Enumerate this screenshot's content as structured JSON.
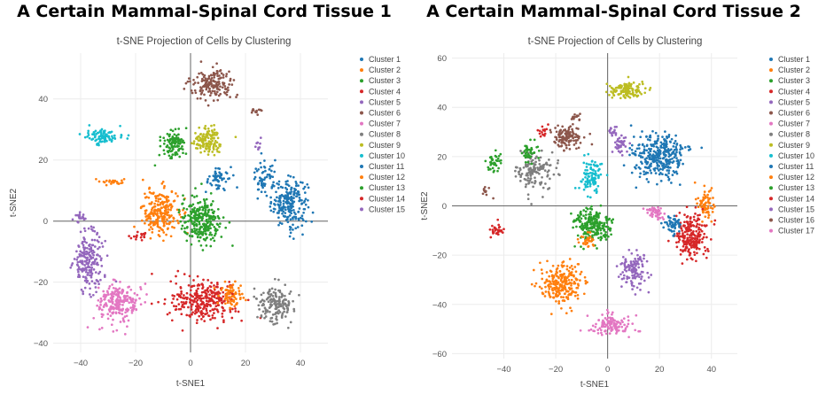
{
  "colors": {
    "palette": [
      "#1f77b4",
      "#ff7f0e",
      "#2ca02c",
      "#d62728",
      "#9467bd",
      "#8c564b",
      "#e377c2",
      "#7f7f7f",
      "#bcbd22",
      "#17becf",
      "#1f77b4",
      "#ff7f0e",
      "#2ca02c",
      "#d62728",
      "#9467bd",
      "#8c564b",
      "#e377c2"
    ]
  },
  "chart_data": [
    {
      "type": "scatter",
      "title": "A Certain Mammal-Spinal Cord Tissue 1",
      "subtitle": "t-SNE Projection of Cells by Clustering",
      "xlabel": "t-SNE1",
      "ylabel": "t-SNE2",
      "xlim": [
        -50,
        50
      ],
      "ylim": [
        -43,
        55
      ],
      "xticks": [
        -40,
        -20,
        0,
        20,
        40
      ],
      "yticks": [
        -40,
        -20,
        0,
        20,
        40
      ],
      "grid": true,
      "legend_position": "right",
      "series": [
        {
          "name": "Cluster 1",
          "clusters": [
            {
              "center": [
                36,
                6
              ],
              "spread": [
                6,
                7
              ],
              "count": 220
            },
            {
              "center": [
                27,
                14
              ],
              "spread": [
                4,
                5
              ],
              "count": 60
            }
          ]
        },
        {
          "name": "Cluster 2",
          "clusters": [
            {
              "center": [
                -11,
                3
              ],
              "spread": [
                6,
                7
              ],
              "count": 220
            },
            {
              "center": [
                -28,
                13
              ],
              "spread": [
                4,
                1
              ],
              "count": 25
            }
          ]
        },
        {
          "name": "Cluster 3",
          "clusters": [
            {
              "center": [
                4,
                0
              ],
              "spread": [
                7,
                7
              ],
              "count": 260
            }
          ]
        },
        {
          "name": "Cluster 4",
          "clusters": [
            {
              "center": [
                5,
                -26
              ],
              "spread": [
                11,
                6
              ],
              "count": 300
            }
          ]
        },
        {
          "name": "Cluster 5",
          "clusters": [
            {
              "center": [
                -37,
                -13
              ],
              "spread": [
                5,
                9
              ],
              "count": 200
            },
            {
              "center": [
                25,
                25
              ],
              "spread": [
                1,
                2
              ],
              "count": 8
            }
          ]
        },
        {
          "name": "Cluster 6",
          "clusters": [
            {
              "center": [
                8,
                45
              ],
              "spread": [
                7,
                4
              ],
              "count": 160
            },
            {
              "center": [
                24,
                36
              ],
              "spread": [
                2,
                1
              ],
              "count": 12
            }
          ]
        },
        {
          "name": "Cluster 7",
          "clusters": [
            {
              "center": [
                -26,
                -27
              ],
              "spread": [
                7,
                6
              ],
              "count": 220
            }
          ]
        },
        {
          "name": "Cluster 8",
          "clusters": [
            {
              "center": [
                31,
                -27
              ],
              "spread": [
                6,
                5
              ],
              "count": 160
            }
          ]
        },
        {
          "name": "Cluster 9",
          "clusters": [
            {
              "center": [
                6,
                26
              ],
              "spread": [
                5,
                4
              ],
              "count": 130
            }
          ]
        },
        {
          "name": "Cluster 10",
          "clusters": [
            {
              "center": [
                -32,
                28
              ],
              "spread": [
                5,
                2.5
              ],
              "count": 90
            }
          ]
        },
        {
          "name": "Cluster 11",
          "clusters": [
            {
              "center": [
                10,
                14
              ],
              "spread": [
                4,
                4
              ],
              "count": 60
            }
          ]
        },
        {
          "name": "Cluster 12",
          "clusters": [
            {
              "center": [
                15,
                -24
              ],
              "spread": [
                4,
                4
              ],
              "count": 70
            }
          ]
        },
        {
          "name": "Cluster 13",
          "clusters": [
            {
              "center": [
                -6,
                25
              ],
              "spread": [
                4,
                4
              ],
              "count": 110
            }
          ]
        },
        {
          "name": "Cluster 14",
          "clusters": [
            {
              "center": [
                -18,
                -5
              ],
              "spread": [
                3,
                1.5
              ],
              "count": 18
            }
          ]
        },
        {
          "name": "Cluster 15",
          "clusters": [
            {
              "center": [
                -40,
                1
              ],
              "spread": [
                2,
                1.5
              ],
              "count": 18
            }
          ]
        }
      ]
    },
    {
      "type": "scatter",
      "title": "A Certain Mammal-Spinal Cord Tissue 2",
      "subtitle": "t-SNE Projection of Cells by Clustering",
      "xlabel": "t-SNE1",
      "ylabel": "t-SNE2",
      "xlim": [
        -60,
        50
      ],
      "ylim": [
        -62,
        62
      ],
      "xticks": [
        -40,
        -20,
        0,
        20,
        40
      ],
      "yticks": [
        -60,
        -40,
        -20,
        0,
        20,
        40,
        60
      ],
      "grid": true,
      "legend_position": "right",
      "series": [
        {
          "name": "Cluster 1",
          "clusters": [
            {
              "center": [
                20,
                20
              ],
              "spread": [
                9,
                8
              ],
              "count": 320
            }
          ]
        },
        {
          "name": "Cluster 2",
          "clusters": [
            {
              "center": [
                -18,
                -32
              ],
              "spread": [
                7,
                8
              ],
              "count": 240
            },
            {
              "center": [
                38,
                0
              ],
              "spread": [
                3,
                6
              ],
              "count": 70
            }
          ]
        },
        {
          "name": "Cluster 3",
          "clusters": [
            {
              "center": [
                -6,
                -8
              ],
              "spread": [
                7,
                6
              ],
              "count": 220
            },
            {
              "center": [
                -44,
                18
              ],
              "spread": [
                3,
                4
              ],
              "count": 40
            }
          ]
        },
        {
          "name": "Cluster 4",
          "clusters": [
            {
              "center": [
                32,
                -12
              ],
              "spread": [
                6,
                8
              ],
              "count": 220
            },
            {
              "center": [
                -43,
                -10
              ],
              "spread": [
                3,
                3
              ],
              "count": 30
            }
          ]
        },
        {
          "name": "Cluster 5",
          "clusters": [
            {
              "center": [
                10,
                -26
              ],
              "spread": [
                5,
                7
              ],
              "count": 120
            },
            {
              "center": [
                5,
                25
              ],
              "spread": [
                3,
                4
              ],
              "count": 40
            }
          ]
        },
        {
          "name": "Cluster 6",
          "clusters": [
            {
              "center": [
                -16,
                28
              ],
              "spread": [
                5,
                4
              ],
              "count": 120
            },
            {
              "center": [
                -47,
                6
              ],
              "spread": [
                2,
                2
              ],
              "count": 12
            }
          ]
        },
        {
          "name": "Cluster 7",
          "clusters": [
            {
              "center": [
                2,
                -48
              ],
              "spread": [
                7,
                4
              ],
              "count": 120
            },
            {
              "center": [
                18,
                -2
              ],
              "spread": [
                3,
                2
              ],
              "count": 30
            }
          ]
        },
        {
          "name": "Cluster 8",
          "clusters": [
            {
              "center": [
                -28,
                14
              ],
              "spread": [
                6,
                7
              ],
              "count": 140
            }
          ]
        },
        {
          "name": "Cluster 9",
          "clusters": [
            {
              "center": [
                8,
                47
              ],
              "spread": [
                7,
                3
              ],
              "count": 120
            }
          ]
        },
        {
          "name": "Cluster 10",
          "clusters": [
            {
              "center": [
                -6,
                12
              ],
              "spread": [
                4,
                6
              ],
              "count": 100
            }
          ]
        },
        {
          "name": "Cluster 11",
          "clusters": [
            {
              "center": [
                25,
                -8
              ],
              "spread": [
                3,
                4
              ],
              "count": 50
            }
          ]
        },
        {
          "name": "Cluster 12",
          "clusters": [
            {
              "center": [
                -8,
                -14
              ],
              "spread": [
                3,
                3
              ],
              "count": 30
            }
          ]
        },
        {
          "name": "Cluster 13",
          "clusters": [
            {
              "center": [
                -30,
                22
              ],
              "spread": [
                3,
                4
              ],
              "count": 40
            }
          ]
        },
        {
          "name": "Cluster 14",
          "clusters": [
            {
              "center": [
                -25,
                30
              ],
              "spread": [
                2,
                2
              ],
              "count": 15
            }
          ]
        },
        {
          "name": "Cluster 15",
          "clusters": [
            {
              "center": [
                2,
                30
              ],
              "spread": [
                2,
                2
              ],
              "count": 15
            }
          ]
        },
        {
          "name": "Cluster 16",
          "clusters": [
            {
              "center": [
                -12,
                36
              ],
              "spread": [
                2,
                1.5
              ],
              "count": 12
            }
          ]
        },
        {
          "name": "Cluster 17",
          "clusters": [
            {
              "center": [
                20,
                -4
              ],
              "spread": [
                2,
                2
              ],
              "count": 15
            }
          ]
        }
      ]
    }
  ]
}
